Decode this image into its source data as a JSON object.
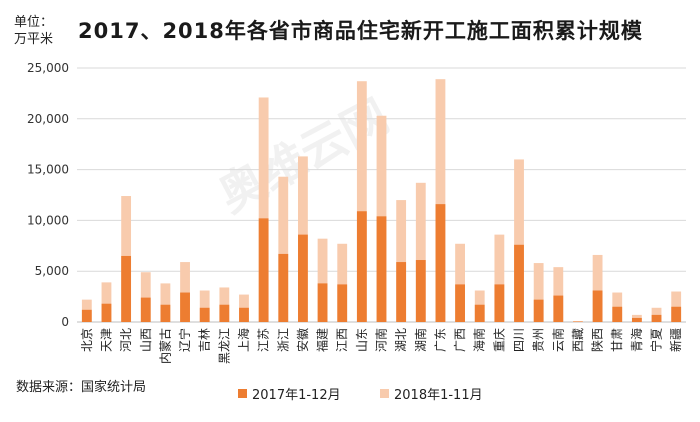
{
  "header": {
    "title": "2017、2018年各省市商品住宅新开工施工面积累计规模",
    "unit_line1": "单位：",
    "unit_line2": "万平米"
  },
  "footer": {
    "source": "数据来源：国家统计局"
  },
  "colors": {
    "series_2017": "#ed7d31",
    "series_2018": "#f8cbad",
    "grid": "#d9d9d9",
    "axis": "#bfbfbf"
  },
  "watermark": "奥维云网",
  "chart_data": {
    "type": "bar",
    "layout": "overlapped",
    "title": "2017、2018年各省市商品住宅新开工施工面积累计规模",
    "ylabel": "万平米",
    "ylim": [
      0,
      25000
    ],
    "yticks": [
      "0",
      "5,000",
      "10,000",
      "15,000",
      "20,000",
      "25,000"
    ],
    "grid": true,
    "legend_position": "bottom",
    "categories": [
      "北京",
      "天津",
      "河北",
      "山西",
      "内蒙古",
      "辽宁",
      "吉林",
      "黑龙江",
      "上海",
      "江苏",
      "浙江",
      "安徽",
      "福建",
      "江西",
      "山东",
      "河南",
      "湖北",
      "湖南",
      "广东",
      "广西",
      "海南",
      "重庆",
      "四川",
      "贵州",
      "云南",
      "西藏",
      "陕西",
      "甘肃",
      "青海",
      "宁夏",
      "新疆"
    ],
    "series": [
      {
        "name": "2017年1-12月",
        "values": [
          1200,
          1800,
          6500,
          2400,
          1700,
          2900,
          1400,
          1700,
          1400,
          10200,
          6700,
          8600,
          3800,
          3700,
          10900,
          10400,
          5900,
          6100,
          11600,
          3700,
          1700,
          3700,
          7600,
          2200,
          2600,
          50,
          3100,
          1500,
          400,
          700,
          1500
        ]
      },
      {
        "name": "2018年1-11月",
        "values": [
          2200,
          3900,
          12400,
          4900,
          3800,
          5900,
          3100,
          3400,
          2700,
          22100,
          14300,
          16300,
          8200,
          7700,
          23700,
          20300,
          12000,
          13700,
          23900,
          7700,
          3100,
          8600,
          16000,
          5800,
          5400,
          80,
          6600,
          2900,
          700,
          1400,
          3000
        ]
      }
    ]
  }
}
